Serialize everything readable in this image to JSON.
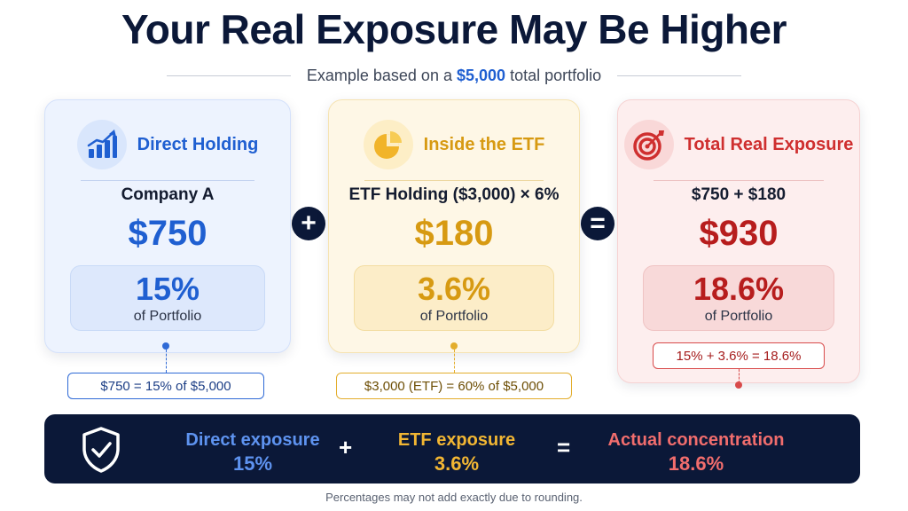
{
  "title": "Your Real Exposure May Be Higher",
  "subtitle": {
    "prefix": "Example based on a",
    "amount": "$5,000",
    "suffix": "total portfolio"
  },
  "cards": {
    "direct": {
      "label": "Direct Holding",
      "line1": "Company A",
      "value": "$750",
      "percent": "15%",
      "percent_label": "of Portfolio",
      "note": "$750 = 15% of $5,000",
      "icon": "bar-chart-growth-icon"
    },
    "etf": {
      "label": "Inside the ETF",
      "line1": "ETF Holding ($3,000) × 6%",
      "value": "$180",
      "percent": "3.6%",
      "percent_label": "of Portfolio",
      "note": "$3,000 (ETF) = 60% of $5,000",
      "icon": "pie-chart-icon"
    },
    "total": {
      "label": "Total Real Exposure",
      "line1": "$750 + $180",
      "value": "$930",
      "percent": "18.6%",
      "percent_label": "of Portfolio",
      "note": "15% + 3.6% = 18.6%",
      "icon": "target-arrow-icon"
    }
  },
  "operators": {
    "plus": "+",
    "equals": "="
  },
  "summary": {
    "direct_label": "Direct exposure",
    "direct_value": "15%",
    "etf_label": "ETF exposure",
    "etf_value": "3.6%",
    "actual_label": "Actual concentration",
    "actual_value": "18.6%",
    "plus": "+",
    "equals": "=",
    "icon": "shield-check-icon"
  },
  "footnote": "Percentages may not add exactly due to rounding.",
  "colors": {
    "navy": "#0b1838",
    "blue": "#1f5fd1",
    "gold": "#d79a12",
    "red": "#b71d1d"
  }
}
